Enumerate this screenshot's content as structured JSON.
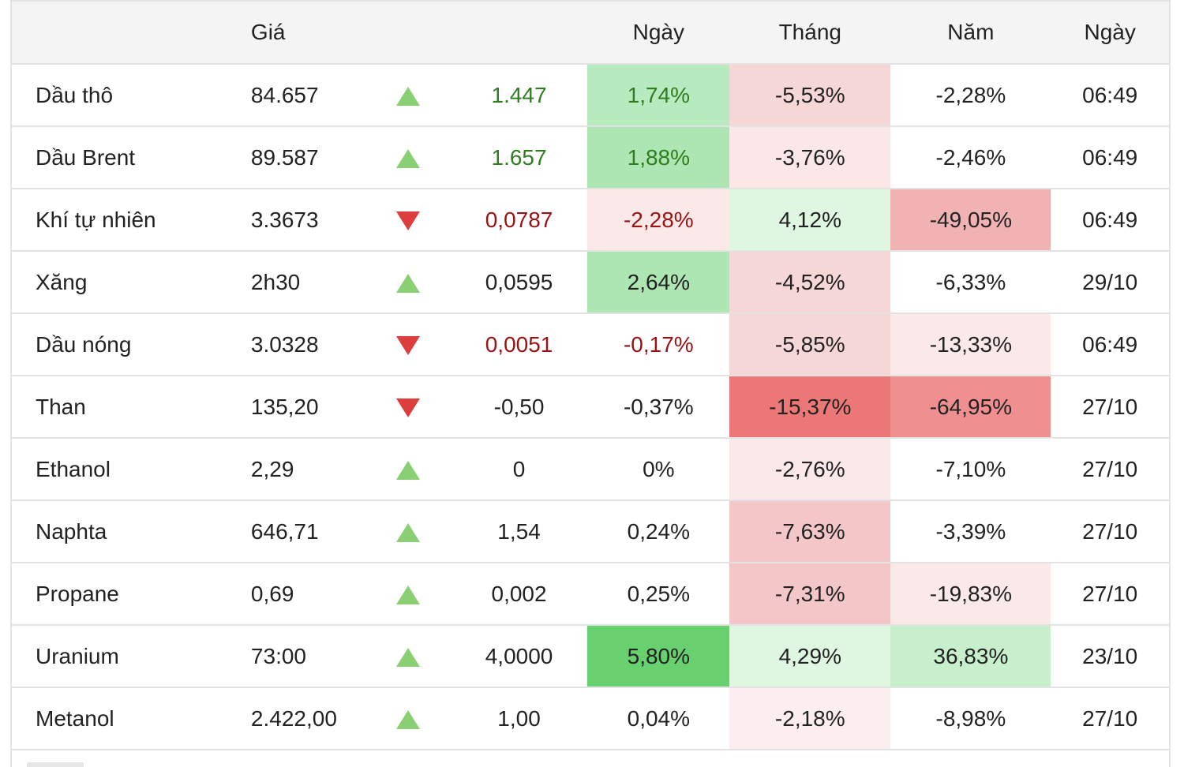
{
  "header": {
    "col_price": "Giá",
    "col_day": "Ngày",
    "col_month": "Tháng",
    "col_year": "Năm",
    "col_time": "Ngày"
  },
  "colors": {
    "up_arrow": "#8bcf74",
    "down_arrow": "#dc3e3e",
    "text_green": "#2f7d1e",
    "text_red": "#9b1212"
  },
  "rows": [
    {
      "name": "Dầu thô",
      "price": "84.657",
      "direction": "up",
      "change": "1.447",
      "change_tone": "green",
      "day": "1,74%",
      "day_tone": "green",
      "day_bg": "#b8eabf",
      "month": "-5,53%",
      "month_bg": "#f6d7d8",
      "year": "-2,28%",
      "year_bg": "#ffffff",
      "time": "06:49"
    },
    {
      "name": "Dầu Brent",
      "price": "89.587",
      "direction": "up",
      "change": "1.657",
      "change_tone": "green",
      "day": "1,88%",
      "day_tone": "green",
      "day_bg": "#ade6b3",
      "month": "-3,76%",
      "month_bg": "#fbe7e7",
      "year": "-2,46%",
      "year_bg": "#ffffff",
      "time": "06:49"
    },
    {
      "name": "Khí tự nhiên",
      "price": "3.3673",
      "direction": "down",
      "change": "0,0787",
      "change_tone": "red",
      "day": "-2,28%",
      "day_tone": "red",
      "day_bg": "#fbe9e9",
      "month": "4,12%",
      "month_bg": "#dff6e1",
      "year": "-49,05%",
      "year_bg": "#f1b2b3",
      "time": "06:49"
    },
    {
      "name": "Xăng",
      "price": "2h30",
      "direction": "up",
      "change": "0,0595",
      "change_tone": "plain",
      "day": "2,64%",
      "day_tone": "plain",
      "day_bg": "#ade6b3",
      "month": "-4,52%",
      "month_bg": "#f6d7d8",
      "year": "-6,33%",
      "year_bg": "#ffffff",
      "time": "29/10"
    },
    {
      "name": "Dầu nóng",
      "price": "3.0328",
      "direction": "down",
      "change": "0,0051",
      "change_tone": "red",
      "day": "-0,17%",
      "day_tone": "red",
      "day_bg": "#ffffff",
      "month": "-5,85%",
      "month_bg": "#f6d7d8",
      "year": "-13,33%",
      "year_bg": "#fbe9e9",
      "time": "06:49"
    },
    {
      "name": "Than",
      "price": "135,20",
      "direction": "down",
      "change": "-0,50",
      "change_tone": "plain",
      "day": "-0,37%",
      "day_tone": "plain",
      "day_bg": "#ffffff",
      "month": "-15,37%",
      "month_bg": "#ec7777",
      "year": "-64,95%",
      "year_bg": "#ef8f90",
      "time": "27/10"
    },
    {
      "name": "Ethanol",
      "price": "2,29",
      "direction": "up",
      "change": "0",
      "change_tone": "plain",
      "day": "0%",
      "day_tone": "plain",
      "day_bg": "#ffffff",
      "month": "-2,76%",
      "month_bg": "#fbe9e9",
      "year": "-7,10%",
      "year_bg": "#ffffff",
      "time": "27/10"
    },
    {
      "name": "Naphta",
      "price": "646,71",
      "direction": "up",
      "change": "1,54",
      "change_tone": "plain",
      "day": "0,24%",
      "day_tone": "plain",
      "day_bg": "#ffffff",
      "month": "-7,63%",
      "month_bg": "#f3c6c7",
      "year": "-3,39%",
      "year_bg": "#ffffff",
      "time": "27/10"
    },
    {
      "name": "Propane",
      "price": "0,69",
      "direction": "up",
      "change": "0,002",
      "change_tone": "plain",
      "day": "0,25%",
      "day_tone": "plain",
      "day_bg": "#ffffff",
      "month": "-7,31%",
      "month_bg": "#f3c6c7",
      "year": "-19,83%",
      "year_bg": "#fbe9e9",
      "time": "27/10"
    },
    {
      "name": "Uranium",
      "price": "73:00",
      "direction": "up",
      "change": "4,0000",
      "change_tone": "plain",
      "day": "5,80%",
      "day_tone": "plain",
      "day_bg": "#68d06e",
      "month": "4,29%",
      "month_bg": "#dff6e1",
      "year": "36,83%",
      "year_bg": "#c8efcc",
      "time": "23/10"
    },
    {
      "name": "Metanol",
      "price": "2.422,00",
      "direction": "up",
      "change": "1,00",
      "change_tone": "plain",
      "day": "0,04%",
      "day_tone": "plain",
      "day_bg": "#ffffff",
      "month": "-2,18%",
      "month_bg": "#fcedee",
      "year": "-8,98%",
      "year_bg": "#ffffff",
      "time": "27/10"
    }
  ]
}
